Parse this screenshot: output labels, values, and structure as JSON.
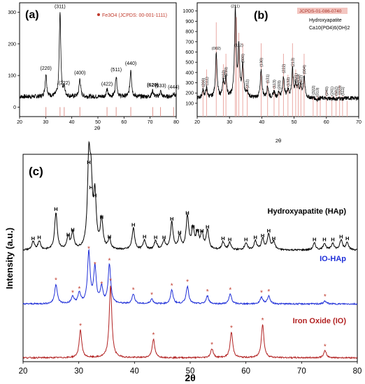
{
  "chart_data": [
    {
      "panel": "(a)",
      "type": "line",
      "xlabel": "2θ",
      "ylabel": "",
      "xlim": [
        20,
        80
      ],
      "ylim": [
        -30,
        330
      ],
      "xticks": [
        20,
        30,
        40,
        50,
        60,
        70,
        80
      ],
      "yticks": [
        0,
        100,
        200,
        300
      ],
      "legend": {
        "label": "Fe3O4 (JCPDS: 00-001-1111)",
        "color": "#c0392b",
        "placement": "top-right"
      },
      "reference_lines": [
        30.1,
        35.5,
        37.1,
        43.1,
        53.5,
        57.0,
        62.6,
        71.0,
        74.0,
        79.0
      ],
      "peaks": [
        {
          "x": 30.1,
          "y": 105,
          "label": "(220)"
        },
        {
          "x": 35.5,
          "y": 300,
          "label": "(311)"
        },
        {
          "x": 37.1,
          "y": 58,
          "label": "(222)"
        },
        {
          "x": 43.1,
          "y": 90,
          "label": "(400)"
        },
        {
          "x": 53.5,
          "y": 55,
          "label": "(422)"
        },
        {
          "x": 57.0,
          "y": 100,
          "label": "(511)"
        },
        {
          "x": 62.6,
          "y": 120,
          "label": "(440)"
        },
        {
          "x": 71.0,
          "y": 52,
          "label": "(620)"
        },
        {
          "x": 74.0,
          "y": 50,
          "label": "(533)"
        },
        {
          "x": 79.0,
          "y": 45,
          "label": "(444)"
        }
      ],
      "baseline": 33,
      "width": 0.35
    },
    {
      "panel": "(b)",
      "type": "line",
      "xlabel": "2θ",
      "ylabel": "",
      "xlim": [
        20,
        70
      ],
      "ylim": [
        -30,
        1080
      ],
      "xticks": [
        20,
        30,
        40,
        50,
        60,
        70
      ],
      "yticks": [
        100,
        200,
        300,
        400,
        500,
        600,
        700,
        800,
        900,
        1000
      ],
      "legend": {
        "label": "JCPDS-01-086-0740",
        "color": "#c0392b",
        "placement": "top-right"
      },
      "legend_subtitle": "Hydroxyapatite",
      "legend_formula": "Ca10(PO4)6(OH)2",
      "reference_lines": [
        21.8,
        22.9,
        25.9,
        28.1,
        28.9,
        31.8,
        32.2,
        32.9,
        34.1,
        35.5,
        39.8,
        41.8,
        43.8,
        45.3,
        46.7,
        48.1,
        49.5,
        50.5,
        51.3,
        52.1,
        53.1,
        55.9,
        57.1,
        58.1,
        60.0,
        61.7,
        63.0,
        64.1,
        65.0,
        66.4
      ],
      "peaks": [
        {
          "x": 21.8,
          "y": 225,
          "label": "(200)"
        },
        {
          "x": 22.9,
          "y": 240,
          "label": "(111)"
        },
        {
          "x": 25.9,
          "y": 590,
          "label": "(002)"
        },
        {
          "x": 28.1,
          "y": 300,
          "label": "(102)"
        },
        {
          "x": 28.9,
          "y": 330,
          "label": "(210)"
        },
        {
          "x": 31.8,
          "y": 1000,
          "label": "(211)"
        },
        {
          "x": 32.9,
          "y": 620,
          "label": "(112)"
        },
        {
          "x": 34.1,
          "y": 460,
          "label": "(300)"
        },
        {
          "x": 35.5,
          "y": 210,
          "label": "(202)"
        },
        {
          "x": 39.8,
          "y": 420,
          "label": "(130)"
        },
        {
          "x": 41.8,
          "y": 260,
          "label": "(131)"
        },
        {
          "x": 43.8,
          "y": 210,
          "label": "(113)"
        },
        {
          "x": 45.3,
          "y": 200,
          "label": "(203)"
        },
        {
          "x": 46.7,
          "y": 360,
          "label": "(222)"
        },
        {
          "x": 48.1,
          "y": 230,
          "label": "(132)"
        },
        {
          "x": 49.5,
          "y": 420,
          "label": "(213)"
        },
        {
          "x": 50.5,
          "y": 270,
          "label": "(321)"
        },
        {
          "x": 51.3,
          "y": 260,
          "label": "(410)"
        },
        {
          "x": 52.1,
          "y": 250,
          "label": "(402)"
        },
        {
          "x": 53.1,
          "y": 350,
          "label": "(004)"
        },
        {
          "x": 55.9,
          "y": 150,
          "label": "(322)"
        },
        {
          "x": 57.1,
          "y": 130,
          "label": "(313)"
        },
        {
          "x": 60.0,
          "y": 140,
          "label": "(240)"
        },
        {
          "x": 61.7,
          "y": 140,
          "label": "(241)"
        },
        {
          "x": 63.0,
          "y": 140,
          "label": "(502)"
        },
        {
          "x": 64.1,
          "y": 150,
          "label": "(323)"
        },
        {
          "x": 65.0,
          "y": 140,
          "label": "(511)"
        }
      ],
      "baseline": 150,
      "width": 0.3
    },
    {
      "panel": "(c)",
      "type": "line",
      "xlabel": "2θ",
      "ylabel": "Intensity (a.u.)",
      "xlim": [
        20,
        80
      ],
      "ylim": [
        -0.1,
        10.5
      ],
      "xticks": [
        20,
        30,
        40,
        50,
        60,
        70,
        80
      ],
      "yticks": [],
      "series": [
        {
          "name": "Hydroxyapatite (HAp)",
          "color": "#000000",
          "offset": 5.6,
          "marker": "H",
          "peaks": [
            {
              "x": 21.8,
              "y": 0.4
            },
            {
              "x": 22.9,
              "y": 0.45
            },
            {
              "x": 25.9,
              "y": 1.9
            },
            {
              "x": 28.1,
              "y": 0.6
            },
            {
              "x": 28.9,
              "y": 0.85
            },
            {
              "x": 31.8,
              "y": 4.3
            },
            {
              "x": 32.2,
              "y": 3.0
            },
            {
              "x": 32.9,
              "y": 2.6
            },
            {
              "x": 34.1,
              "y": 1.5
            },
            {
              "x": 35.5,
              "y": 0.5
            },
            {
              "x": 39.8,
              "y": 1.1
            },
            {
              "x": 41.8,
              "y": 0.5
            },
            {
              "x": 43.8,
              "y": 0.45
            },
            {
              "x": 45.3,
              "y": 0.45
            },
            {
              "x": 46.7,
              "y": 1.4
            },
            {
              "x": 48.1,
              "y": 0.7
            },
            {
              "x": 49.5,
              "y": 1.7
            },
            {
              "x": 50.5,
              "y": 1.0
            },
            {
              "x": 51.3,
              "y": 0.8
            },
            {
              "x": 52.1,
              "y": 0.8
            },
            {
              "x": 53.1,
              "y": 1.0
            },
            {
              "x": 55.9,
              "y": 0.4
            },
            {
              "x": 57.1,
              "y": 0.35
            },
            {
              "x": 60.0,
              "y": 0.35
            },
            {
              "x": 61.7,
              "y": 0.45
            },
            {
              "x": 63.0,
              "y": 0.55
            },
            {
              "x": 64.1,
              "y": 0.8
            },
            {
              "x": 65.0,
              "y": 0.4
            },
            {
              "x": 72.3,
              "y": 0.35
            },
            {
              "x": 74.1,
              "y": 0.35
            },
            {
              "x": 75.6,
              "y": 0.35
            },
            {
              "x": 77.1,
              "y": 0.5
            },
            {
              "x": 78.2,
              "y": 0.4
            }
          ]
        },
        {
          "name": "IO-HAp",
          "color": "#1f2fd8",
          "offset": 2.85,
          "marker": "*",
          "peaks": [
            {
              "x": 25.9,
              "y": 1.0
            },
            {
              "x": 28.9,
              "y": 0.35
            },
            {
              "x": 30.1,
              "y": 0.55
            },
            {
              "x": 31.8,
              "y": 2.6
            },
            {
              "x": 32.9,
              "y": 1.8
            },
            {
              "x": 34.1,
              "y": 0.8
            },
            {
              "x": 35.5,
              "y": 2.0
            },
            {
              "x": 39.8,
              "y": 0.5
            },
            {
              "x": 43.1,
              "y": 0.25
            },
            {
              "x": 46.7,
              "y": 0.7
            },
            {
              "x": 49.5,
              "y": 0.9
            },
            {
              "x": 53.1,
              "y": 0.4
            },
            {
              "x": 57.2,
              "y": 0.5
            },
            {
              "x": 62.8,
              "y": 0.35
            },
            {
              "x": 64.1,
              "y": 0.4
            },
            {
              "x": 74.2,
              "y": 0.15
            }
          ]
        },
        {
          "name": "Iron Oxide (IO)",
          "color": "#b22222",
          "offset": 0.1,
          "marker": "*",
          "peaks": [
            {
              "x": 30.3,
              "y": 1.4
            },
            {
              "x": 35.7,
              "y": 3.7
            },
            {
              "x": 43.4,
              "y": 0.95
            },
            {
              "x": 53.9,
              "y": 0.45
            },
            {
              "x": 57.4,
              "y": 1.3
            },
            {
              "x": 63.0,
              "y": 1.7
            },
            {
              "x": 74.2,
              "y": 0.35
            }
          ]
        }
      ]
    }
  ]
}
